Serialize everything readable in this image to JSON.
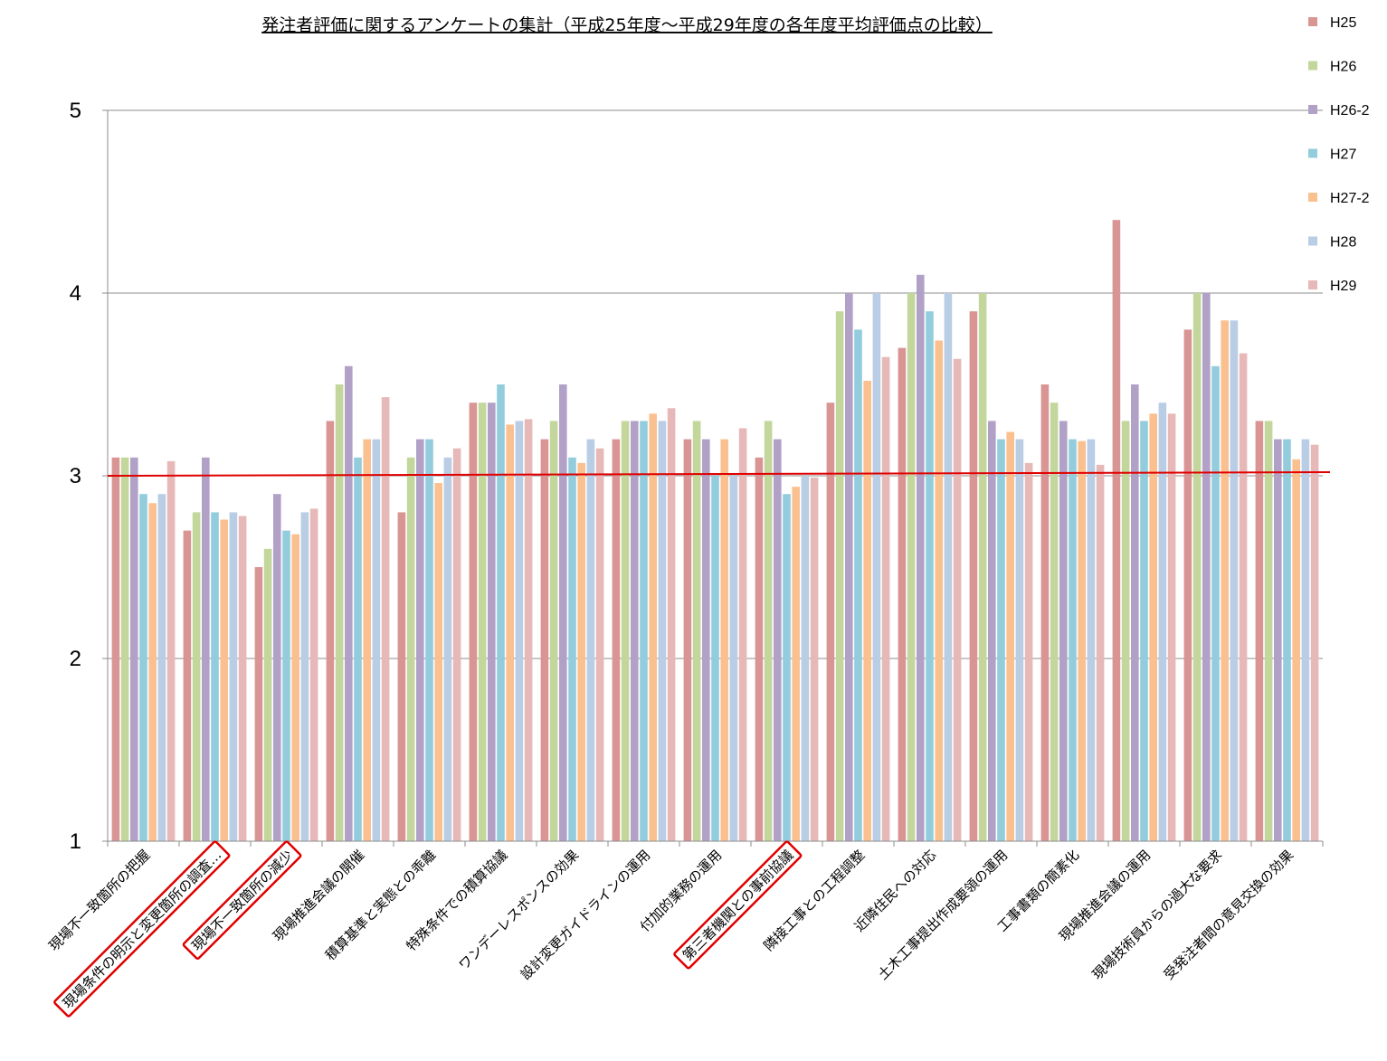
{
  "chart_data": {
    "type": "bar",
    "title": "発注者評価に関するアンケートの集計（平成25年度～平成29年度の各年度平均評価点の比較）",
    "xlabel": "",
    "ylabel": "",
    "ylim": [
      1,
      5
    ],
    "yticks": [
      "1",
      "2",
      "3",
      "4",
      "5"
    ],
    "grid": true,
    "legend_position": "right",
    "reference_line": {
      "y": 3,
      "color": "#e00000"
    },
    "highlight_color": "#e00000",
    "highlighted_categories": [
      1,
      2,
      9
    ],
    "categories": [
      "現場不一致箇所の把握",
      "現場条件の明示と変更箇所の調査…",
      "現場不一致箇所の減少",
      "現場推進会議の開催",
      "積算基準と実態との乖離",
      "特殊条件での積算協議",
      "ワンデーレスポンスの効果",
      "設計変更ガイドラインの運用",
      "付加的業務の運用",
      "第三者機関との事前協議",
      "隣接工事との工程調整",
      "近隣住民への対応",
      "土木工事提出作成要領の運用",
      "工事書類の簡素化",
      "現場推進会議の運用",
      "現場技術員からの過大な要求",
      "受発注者間の意見交換の効果"
    ],
    "series": [
      {
        "name": "H25",
        "color": "#d99594",
        "values": [
          3.1,
          2.7,
          2.5,
          3.3,
          2.8,
          3.4,
          3.2,
          3.2,
          3.2,
          3.1,
          3.4,
          3.7,
          3.9,
          3.5,
          4.4,
          3.8,
          3.3
        ]
      },
      {
        "name": "H26",
        "color": "#c3d69b",
        "values": [
          3.1,
          2.8,
          2.6,
          3.5,
          3.1,
          3.4,
          3.3,
          3.3,
          3.3,
          3.3,
          3.9,
          4.0,
          4.0,
          3.4,
          3.3,
          4.0,
          3.3
        ]
      },
      {
        "name": "H26-2",
        "color": "#b2a1c7",
        "values": [
          3.1,
          3.1,
          2.9,
          3.6,
          3.2,
          3.4,
          3.5,
          3.3,
          3.2,
          3.2,
          4.0,
          4.1,
          3.3,
          3.3,
          3.5,
          4.0,
          3.2
        ]
      },
      {
        "name": "H27",
        "color": "#93cddd",
        "values": [
          2.9,
          2.8,
          2.7,
          3.1,
          3.2,
          3.5,
          3.1,
          3.3,
          3.0,
          2.9,
          3.8,
          3.9,
          3.2,
          3.2,
          3.3,
          3.6,
          3.2
        ]
      },
      {
        "name": "H27-2",
        "color": "#fac090",
        "values": [
          2.85,
          2.76,
          2.68,
          3.2,
          2.96,
          3.28,
          3.07,
          3.34,
          3.2,
          2.94,
          3.52,
          3.74,
          3.24,
          3.19,
          3.34,
          3.85,
          3.09
        ]
      },
      {
        "name": "H28",
        "color": "#b9cde5",
        "values": [
          2.9,
          2.8,
          2.8,
          3.2,
          3.1,
          3.3,
          3.2,
          3.3,
          3.0,
          3.0,
          4.0,
          4.0,
          3.2,
          3.2,
          3.4,
          3.85,
          3.2
        ]
      },
      {
        "name": "H29",
        "color": "#e6b9b8",
        "values": [
          3.08,
          2.78,
          2.82,
          3.43,
          3.15,
          3.31,
          3.15,
          3.37,
          3.26,
          2.99,
          3.65,
          3.64,
          3.07,
          3.06,
          3.34,
          3.67,
          3.17
        ]
      }
    ]
  }
}
